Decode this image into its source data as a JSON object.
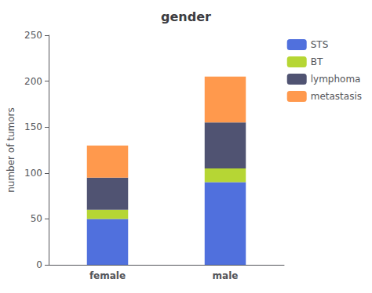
{
  "chart_data": {
    "type": "bar",
    "title": "gender",
    "ylabel": "number of tumors",
    "categories": [
      "female",
      "male"
    ],
    "series": [
      {
        "name": "STS",
        "values": [
          50,
          90
        ]
      },
      {
        "name": "BT",
        "values": [
          10,
          15
        ]
      },
      {
        "name": "lymphoma",
        "values": [
          35,
          50
        ]
      },
      {
        "name": "metastasis",
        "values": [
          35,
          50
        ]
      }
    ],
    "ylim": [
      0,
      250
    ],
    "yticks": [
      0,
      50,
      100,
      150,
      200,
      250
    ],
    "stacked": true,
    "legend": "upper right",
    "grid": false
  }
}
